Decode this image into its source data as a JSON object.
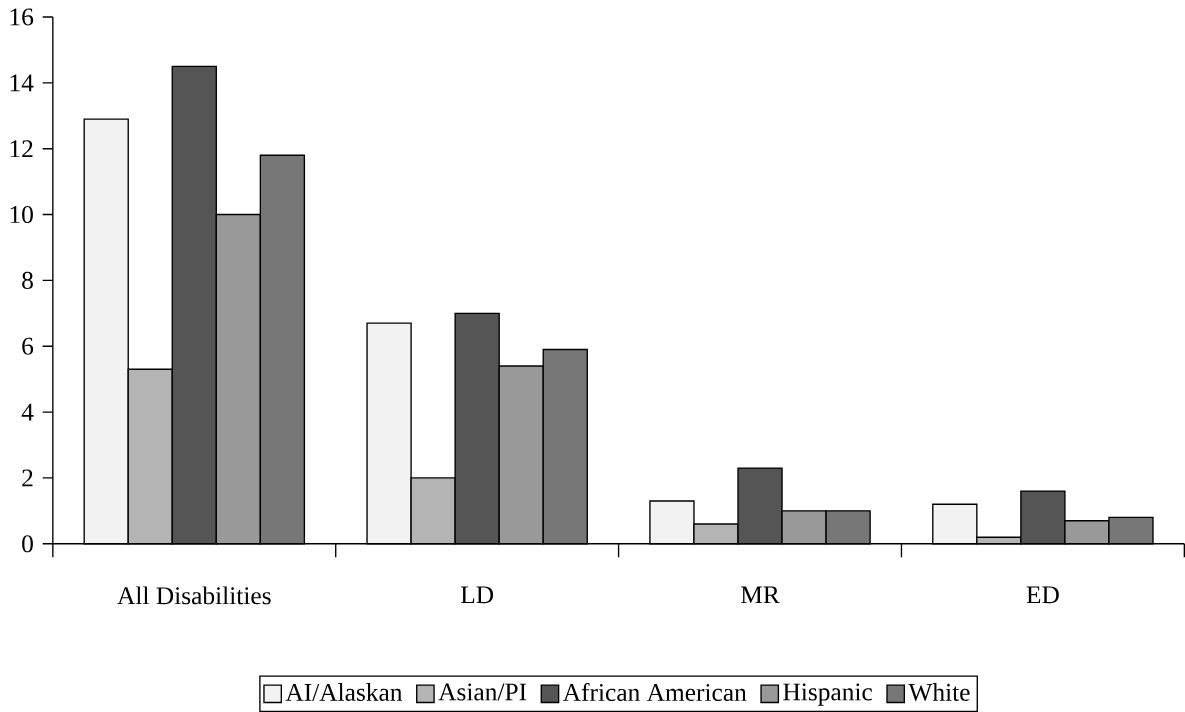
{
  "chart_data": {
    "type": "bar",
    "categories": [
      "All Disabilities",
      "LD",
      "MR",
      "ED"
    ],
    "series": [
      {
        "name": "AI/Alaskan",
        "color": "#f2f2f2",
        "values": [
          12.9,
          6.7,
          1.3,
          1.2
        ]
      },
      {
        "name": "Asian/PI",
        "color": "#b4b4b4",
        "values": [
          5.3,
          2.0,
          0.6,
          0.2
        ]
      },
      {
        "name": "African American",
        "color": "#555555",
        "values": [
          14.5,
          7.0,
          2.3,
          1.6
        ]
      },
      {
        "name": "Hispanic",
        "color": "#999999",
        "values": [
          10.0,
          5.4,
          1.0,
          0.7
        ]
      },
      {
        "name": "White",
        "color": "#777777",
        "values": [
          11.8,
          5.9,
          1.0,
          0.8
        ]
      }
    ],
    "ylim": [
      0,
      16
    ],
    "yticks": [
      0,
      2,
      4,
      6,
      8,
      10,
      12,
      14,
      16
    ],
    "legend": "bottom",
    "grid": false
  }
}
